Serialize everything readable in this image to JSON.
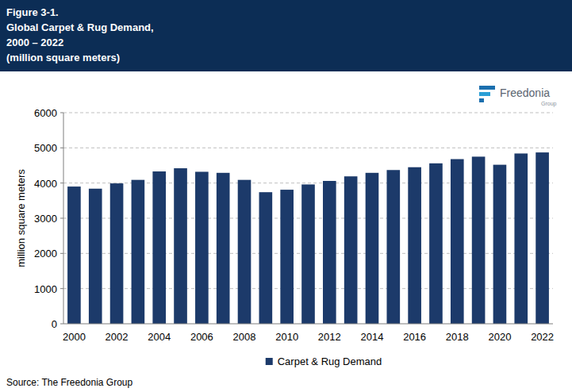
{
  "chart_data": {
    "type": "bar",
    "title": "Figure 3-1.",
    "subtitle": [
      "Global Carpet & Rug Demand,",
      "2000 – 2022",
      "(million square meters)"
    ],
    "y_label": "million square meters",
    "source": "Source: The Freedonia Group",
    "logo": [
      "Freedonia",
      "Group"
    ],
    "categories": [
      "2000",
      null,
      "2002",
      null,
      "2004",
      null,
      "2006",
      null,
      "2008",
      null,
      "2010",
      null,
      "2012",
      null,
      "2014",
      null,
      "2016",
      null,
      "2018",
      null,
      "2020",
      null,
      "2022"
    ],
    "series": [
      {
        "name": "Carpet & Rug Demand",
        "color": "#1c3a6a",
        "values": [
          3900,
          3840,
          3990,
          4090,
          4330,
          4420,
          4320,
          4290,
          4090,
          3740,
          3810,
          3960,
          4060,
          4190,
          4290,
          4370,
          4450,
          4560,
          4680,
          4750,
          4520,
          4840,
          4870
        ]
      }
    ],
    "ylim": [
      0,
      6000
    ],
    "yticks": [
      0,
      1000,
      2000,
      3000,
      4000,
      5000,
      6000
    ],
    "grid": true,
    "legend": "bottom"
  }
}
